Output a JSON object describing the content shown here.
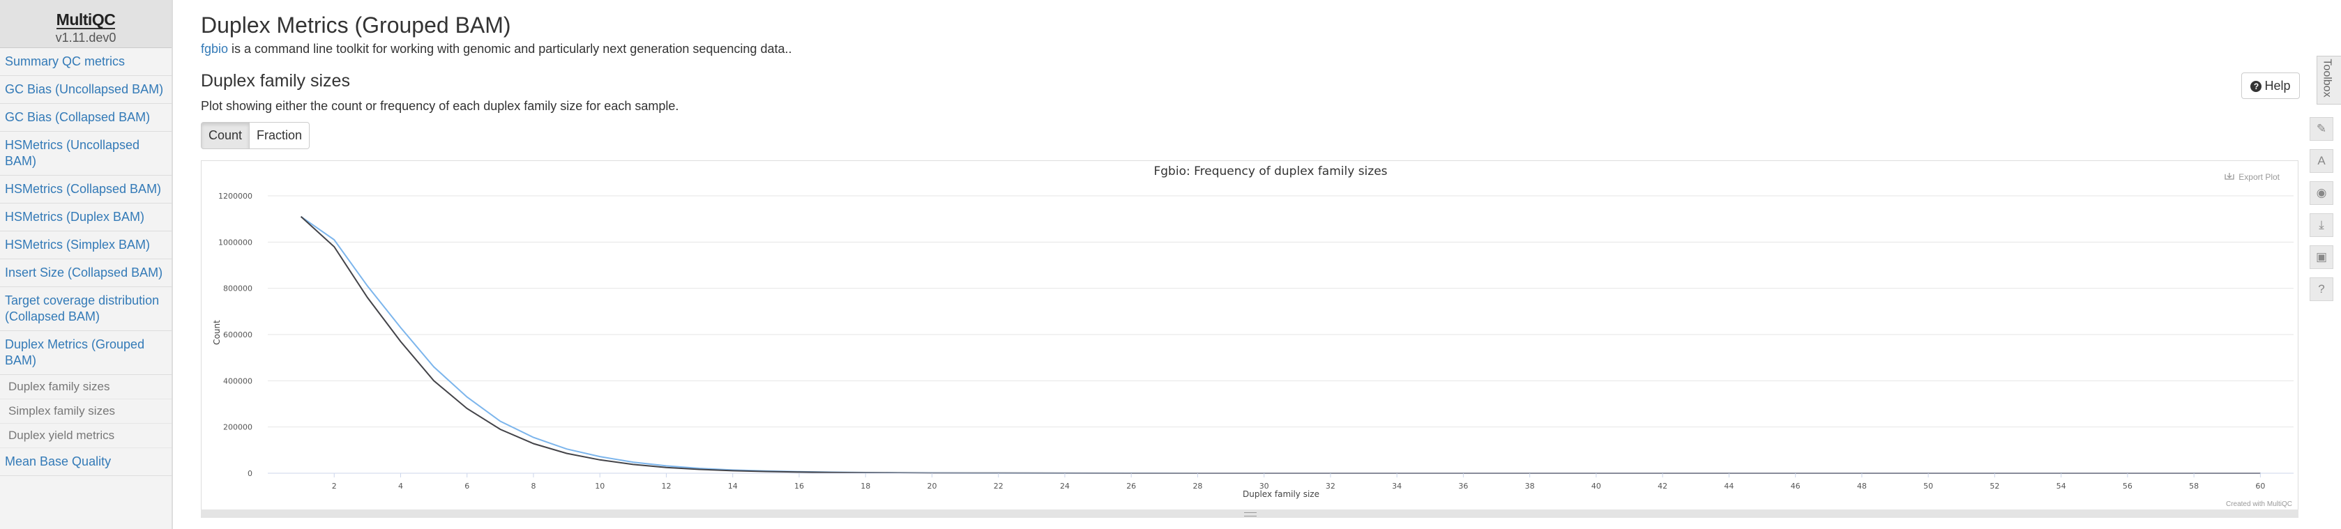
{
  "sidebar": {
    "logo": "MultiQC",
    "version": "v1.11.dev0",
    "items": [
      "Summary QC metrics",
      "GC Bias (Uncollapsed BAM)",
      "GC Bias (Collapsed BAM)",
      "HSMetrics (Uncollapsed BAM)",
      "HSMetrics (Collapsed BAM)",
      "HSMetrics (Duplex BAM)",
      "HSMetrics (Simplex BAM)",
      "Insert Size (Collapsed BAM)",
      "Target coverage distribution (Collapsed BAM)",
      "Duplex Metrics (Grouped BAM)"
    ],
    "subitems": [
      "Duplex family sizes",
      "Simplex family sizes",
      "Duplex yield metrics"
    ],
    "last_item": "Mean Base Quality"
  },
  "main": {
    "title": "Duplex Metrics (Grouped BAM)",
    "intro_link": "fgbio",
    "intro_text": " is a command line toolkit for working with genomic and particularly next generation sequencing data..",
    "section_title": "Duplex family sizes",
    "section_desc": "Plot showing either the count or frequency of each duplex family size for each sample.",
    "help_label": "Help",
    "toggle": [
      "Count",
      "Fraction"
    ]
  },
  "plot": {
    "export_label": "Export Plot",
    "credit": "Created with MultiQC"
  },
  "toolbox": {
    "label": "Toolbox",
    "icons": [
      "highlight-icon",
      "rename-icon",
      "hide-icon",
      "export-icon",
      "save-icon",
      "help-icon"
    ]
  },
  "chart_data": {
    "type": "line",
    "title": "Fgbio: Frequency of duplex family sizes",
    "xlabel": "Duplex family size",
    "ylabel": "Count",
    "xlim": [
      0,
      61
    ],
    "ylim": [
      0,
      1200000
    ],
    "yticks": [
      0,
      200000,
      400000,
      600000,
      800000,
      1000000,
      1200000
    ],
    "xticks": [
      2,
      4,
      6,
      8,
      10,
      12,
      14,
      16,
      18,
      20,
      22,
      24,
      26,
      28,
      30,
      32,
      34,
      36,
      38,
      40,
      42,
      44,
      46,
      48,
      50,
      52,
      54,
      56,
      58,
      60
    ],
    "grid": true,
    "colors": [
      "#7cb5ec",
      "#434348"
    ],
    "x": [
      1,
      2,
      3,
      4,
      5,
      6,
      7,
      8,
      9,
      10,
      11,
      12,
      13,
      14,
      15,
      16,
      17,
      18,
      19,
      20,
      22,
      24,
      26,
      28,
      30,
      35,
      40,
      45,
      50,
      55,
      60
    ],
    "series": [
      {
        "values": [
          1110000,
          1010000,
          810000,
          630000,
          460000,
          330000,
          225000,
          155000,
          105000,
          72000,
          48000,
          32000,
          21000,
          14000,
          9500,
          6500,
          4500,
          3000,
          2000,
          1400,
          700,
          350,
          180,
          90,
          50,
          20,
          10,
          5,
          3,
          2,
          1
        ]
      },
      {
        "values": [
          1110000,
          980000,
          760000,
          570000,
          400000,
          280000,
          190000,
          128000,
          86000,
          58000,
          38000,
          25000,
          16500,
          11000,
          7500,
          5000,
          3400,
          2300,
          1500,
          1000,
          500,
          250,
          130,
          70,
          40,
          15,
          8,
          4,
          2,
          1,
          1
        ]
      }
    ]
  }
}
